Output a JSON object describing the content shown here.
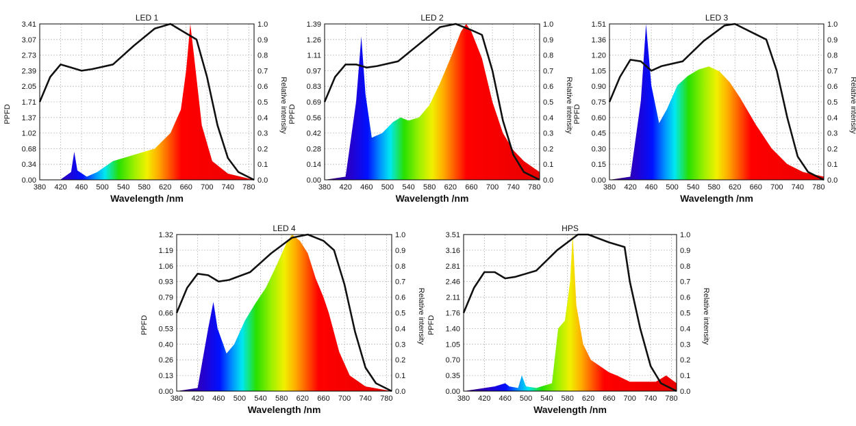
{
  "x_axis": {
    "label": "Wavelength /nm",
    "ticks": [
      380,
      420,
      460,
      500,
      540,
      580,
      620,
      660,
      700,
      740,
      780
    ],
    "range": [
      380,
      790
    ]
  },
  "left_axis_label": "PPFD",
  "right_axis_label": "Relative intensity",
  "right_axis_ticks": [
    "0.0",
    "0.1",
    "0.2",
    "0.3",
    "0.4",
    "0.5",
    "0.6",
    "0.7",
    "0.8",
    "0.9",
    "1.0"
  ],
  "colors": {
    "curve": "#111111",
    "grid": "#bdbdbd",
    "frame": "#000000"
  },
  "chart_data": [
    {
      "type": "area",
      "title": "LED 1",
      "ylabel": "PPFD",
      "y2label": "Relative intensity",
      "yticks": [
        "0.00",
        "0.34",
        "0.68",
        "1.02",
        "1.37",
        "1.71",
        "2.05",
        "2.39",
        "2.73",
        "3.07",
        "3.41"
      ],
      "ylim": [
        0,
        3.41
      ],
      "y2lim": [
        0,
        1.0
      ],
      "spectrum": [
        [
          380,
          0
        ],
        [
          420,
          0.002
        ],
        [
          440,
          0.05
        ],
        [
          446,
          0.18
        ],
        [
          452,
          0.06
        ],
        [
          470,
          0.02
        ],
        [
          490,
          0.05
        ],
        [
          520,
          0.12
        ],
        [
          560,
          0.16
        ],
        [
          600,
          0.2
        ],
        [
          630,
          0.3
        ],
        [
          650,
          0.45
        ],
        [
          660,
          0.7
        ],
        [
          668,
          1.0
        ],
        [
          675,
          0.8
        ],
        [
          690,
          0.35
        ],
        [
          710,
          0.12
        ],
        [
          740,
          0.04
        ],
        [
          790,
          0.0
        ]
      ],
      "relative_intensity": [
        [
          380,
          0.5
        ],
        [
          400,
          0.66
        ],
        [
          420,
          0.74
        ],
        [
          440,
          0.72
        ],
        [
          460,
          0.7
        ],
        [
          480,
          0.71
        ],
        [
          520,
          0.74
        ],
        [
          560,
          0.86
        ],
        [
          600,
          0.97
        ],
        [
          630,
          1.0
        ],
        [
          650,
          0.96
        ],
        [
          665,
          0.93
        ],
        [
          680,
          0.9
        ],
        [
          700,
          0.66
        ],
        [
          720,
          0.35
        ],
        [
          740,
          0.14
        ],
        [
          760,
          0.05
        ],
        [
          790,
          0.0
        ]
      ]
    },
    {
      "type": "area",
      "title": "LED 2",
      "ylabel": "PPFD",
      "y2label": "Relative intensity",
      "yticks": [
        "0.00",
        "0.14",
        "0.28",
        "0.42",
        "0.56",
        "0.69",
        "0.83",
        "0.97",
        "1.11",
        "1.26",
        "1.39"
      ],
      "ylim": [
        0,
        1.39
      ],
      "y2lim": [
        0,
        1.0
      ],
      "spectrum": [
        [
          380,
          0
        ],
        [
          420,
          0.02
        ],
        [
          440,
          0.5
        ],
        [
          450,
          0.92
        ],
        [
          458,
          0.55
        ],
        [
          470,
          0.27
        ],
        [
          490,
          0.3
        ],
        [
          510,
          0.37
        ],
        [
          525,
          0.4
        ],
        [
          540,
          0.38
        ],
        [
          560,
          0.4
        ],
        [
          580,
          0.48
        ],
        [
          600,
          0.62
        ],
        [
          620,
          0.78
        ],
        [
          640,
          0.95
        ],
        [
          650,
          1.0
        ],
        [
          660,
          0.95
        ],
        [
          680,
          0.78
        ],
        [
          700,
          0.5
        ],
        [
          720,
          0.3
        ],
        [
          740,
          0.19
        ],
        [
          760,
          0.12
        ],
        [
          790,
          0.05
        ]
      ],
      "relative_intensity": [
        [
          380,
          0.5
        ],
        [
          400,
          0.66
        ],
        [
          420,
          0.74
        ],
        [
          440,
          0.74
        ],
        [
          460,
          0.72
        ],
        [
          480,
          0.73
        ],
        [
          520,
          0.76
        ],
        [
          560,
          0.87
        ],
        [
          600,
          0.98
        ],
        [
          630,
          1.0
        ],
        [
          660,
          0.96
        ],
        [
          680,
          0.93
        ],
        [
          700,
          0.7
        ],
        [
          720,
          0.38
        ],
        [
          740,
          0.16
        ],
        [
          760,
          0.05
        ],
        [
          790,
          0.0
        ]
      ]
    },
    {
      "type": "area",
      "title": "LED 3",
      "ylabel": "PPFD",
      "y2label": "Relative intensity",
      "yticks": [
        "0.00",
        "0.15",
        "0.30",
        "0.45",
        "0.60",
        "0.75",
        "0.90",
        "1.05",
        "1.20",
        "1.36",
        "1.51"
      ],
      "ylim": [
        0,
        1.51
      ],
      "y2lim": [
        0,
        1.0
      ],
      "spectrum": [
        [
          380,
          0
        ],
        [
          420,
          0.02
        ],
        [
          440,
          0.5
        ],
        [
          450,
          0.99
        ],
        [
          460,
          0.6
        ],
        [
          475,
          0.36
        ],
        [
          490,
          0.45
        ],
        [
          510,
          0.6
        ],
        [
          530,
          0.66
        ],
        [
          550,
          0.7
        ],
        [
          570,
          0.72
        ],
        [
          590,
          0.69
        ],
        [
          610,
          0.62
        ],
        [
          630,
          0.52
        ],
        [
          660,
          0.35
        ],
        [
          690,
          0.2
        ],
        [
          720,
          0.1
        ],
        [
          750,
          0.05
        ],
        [
          790,
          0.02
        ]
      ],
      "relative_intensity": [
        [
          380,
          0.5
        ],
        [
          400,
          0.66
        ],
        [
          420,
          0.77
        ],
        [
          440,
          0.76
        ],
        [
          460,
          0.7
        ],
        [
          480,
          0.73
        ],
        [
          520,
          0.76
        ],
        [
          560,
          0.89
        ],
        [
          600,
          0.99
        ],
        [
          620,
          1.0
        ],
        [
          650,
          0.95
        ],
        [
          680,
          0.9
        ],
        [
          700,
          0.7
        ],
        [
          720,
          0.4
        ],
        [
          740,
          0.15
        ],
        [
          760,
          0.05
        ],
        [
          790,
          0.0
        ]
      ]
    },
    {
      "type": "area",
      "title": "LED 4",
      "ylabel": "PPFD",
      "y2label": "Relative intensity",
      "yticks": [
        "0.00",
        "0.13",
        "0.26",
        "0.40",
        "0.53",
        "0.66",
        "0.79",
        "0.93",
        "1.06",
        "1.19",
        "1.32"
      ],
      "ylim": [
        0,
        1.32
      ],
      "y2lim": [
        0,
        1.0
      ],
      "spectrum": [
        [
          380,
          0
        ],
        [
          420,
          0.02
        ],
        [
          440,
          0.4
        ],
        [
          450,
          0.57
        ],
        [
          458,
          0.4
        ],
        [
          475,
          0.24
        ],
        [
          490,
          0.3
        ],
        [
          510,
          0.45
        ],
        [
          530,
          0.56
        ],
        [
          550,
          0.66
        ],
        [
          570,
          0.8
        ],
        [
          590,
          0.95
        ],
        [
          600,
          1.0
        ],
        [
          615,
          0.96
        ],
        [
          630,
          0.88
        ],
        [
          645,
          0.72
        ],
        [
          660,
          0.6
        ],
        [
          670,
          0.5
        ],
        [
          690,
          0.25
        ],
        [
          710,
          0.1
        ],
        [
          740,
          0.03
        ],
        [
          790,
          0.0
        ]
      ],
      "relative_intensity": [
        [
          380,
          0.5
        ],
        [
          400,
          0.66
        ],
        [
          420,
          0.75
        ],
        [
          440,
          0.74
        ],
        [
          460,
          0.7
        ],
        [
          480,
          0.71
        ],
        [
          520,
          0.76
        ],
        [
          560,
          0.88
        ],
        [
          600,
          0.98
        ],
        [
          630,
          1.0
        ],
        [
          660,
          0.96
        ],
        [
          680,
          0.9
        ],
        [
          700,
          0.68
        ],
        [
          720,
          0.38
        ],
        [
          740,
          0.15
        ],
        [
          760,
          0.05
        ],
        [
          790,
          0.0
        ]
      ]
    },
    {
      "type": "area",
      "title": "HPS",
      "ylabel": "PPFD",
      "y2label": "Relative intensity",
      "yticks": [
        "0.00",
        "0.35",
        "0.70",
        "1.05",
        "1.40",
        "1.76",
        "2.11",
        "2.46",
        "2.81",
        "3.16",
        "3.51"
      ],
      "ylim": [
        0,
        3.51
      ],
      "y2lim": [
        0,
        1.0
      ],
      "spectrum": [
        [
          380,
          0
        ],
        [
          440,
          0.03
        ],
        [
          460,
          0.05
        ],
        [
          468,
          0.03
        ],
        [
          485,
          0.02
        ],
        [
          492,
          0.1
        ],
        [
          500,
          0.03
        ],
        [
          520,
          0.02
        ],
        [
          550,
          0.05
        ],
        [
          562,
          0.4
        ],
        [
          575,
          0.45
        ],
        [
          585,
          0.7
        ],
        [
          590,
          1.0
        ],
        [
          597,
          0.55
        ],
        [
          610,
          0.3
        ],
        [
          625,
          0.2
        ],
        [
          660,
          0.12
        ],
        [
          675,
          0.1
        ],
        [
          700,
          0.06
        ],
        [
          750,
          0.06
        ],
        [
          770,
          0.1
        ],
        [
          790,
          0.05
        ]
      ],
      "relative_intensity": [
        [
          380,
          0.5
        ],
        [
          400,
          0.66
        ],
        [
          420,
          0.76
        ],
        [
          440,
          0.76
        ],
        [
          460,
          0.72
        ],
        [
          480,
          0.73
        ],
        [
          520,
          0.77
        ],
        [
          560,
          0.9
        ],
        [
          600,
          1.0
        ],
        [
          620,
          1.0
        ],
        [
          660,
          0.95
        ],
        [
          690,
          0.92
        ],
        [
          700,
          0.7
        ],
        [
          720,
          0.4
        ],
        [
          740,
          0.16
        ],
        [
          760,
          0.05
        ],
        [
          790,
          0.0
        ]
      ]
    }
  ]
}
